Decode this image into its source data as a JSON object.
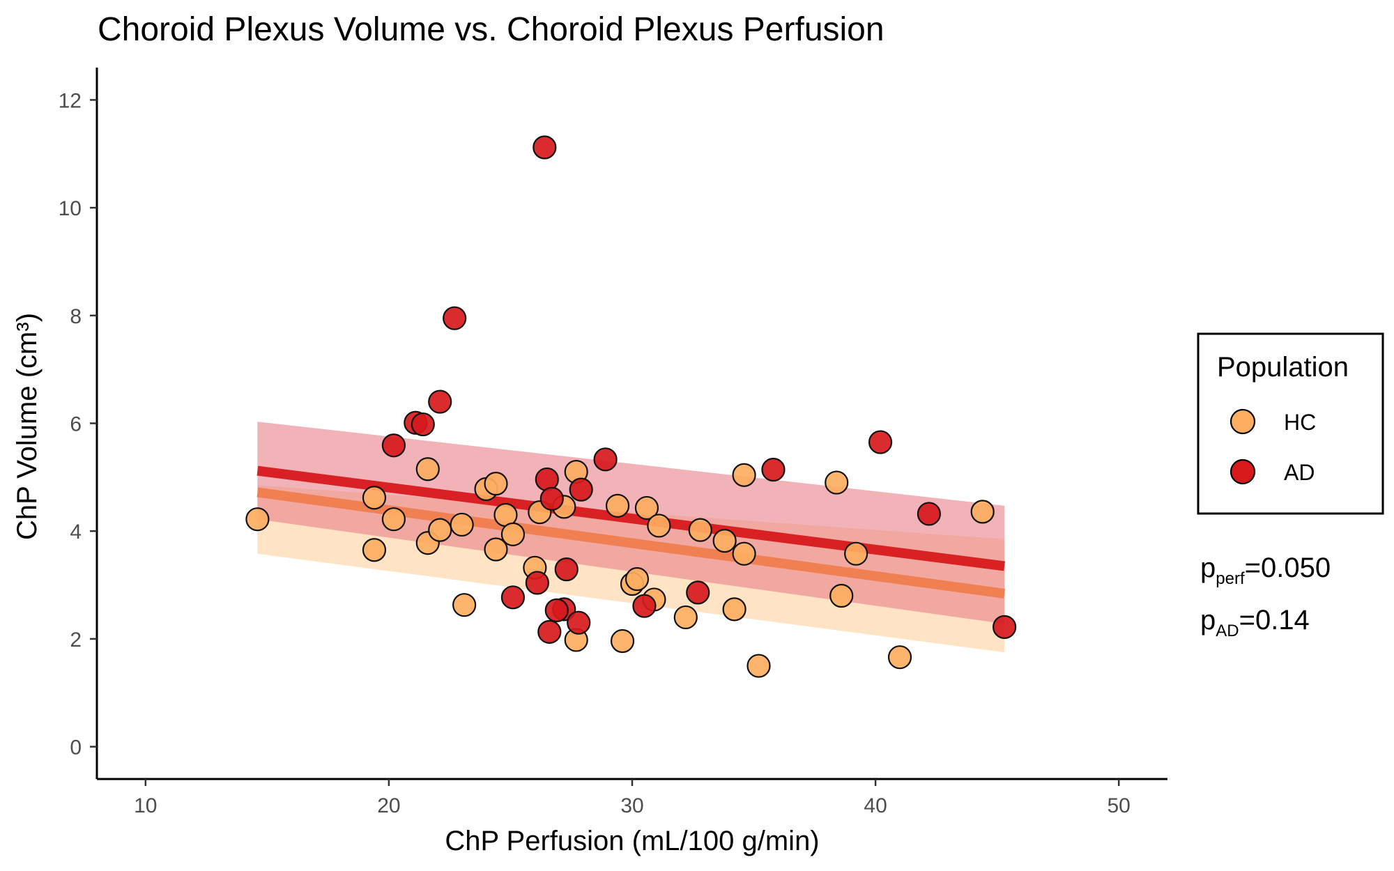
{
  "chart_data": {
    "type": "scatter",
    "title": "Choroid Plexus Volume vs. Choroid Plexus Perfusion",
    "xlabel": "ChP Perfusion (mL/100 g/min)",
    "ylabel": "ChP Volume (cm³)",
    "xlim": [
      8,
      52
    ],
    "ylim": [
      -0.6,
      12.6
    ],
    "xticks": [
      10,
      20,
      30,
      40,
      50
    ],
    "yticks": [
      0,
      2,
      4,
      6,
      8,
      10,
      12
    ],
    "legend": {
      "title": "Population",
      "position": "right",
      "entries": [
        "HC",
        "AD"
      ]
    },
    "colors": {
      "HC": "#fdae61",
      "AD": "#d7191c",
      "HC_line": "#f07b48",
      "HC_band": "#fdd9b0",
      "AD_band": "#e8848a"
    },
    "series": [
      {
        "name": "HC",
        "points": [
          [
            14.6,
            4.22
          ],
          [
            19.4,
            4.62
          ],
          [
            19.4,
            3.65
          ],
          [
            20.2,
            4.22
          ],
          [
            21.6,
            5.15
          ],
          [
            21.6,
            3.78
          ],
          [
            22.1,
            4.02
          ],
          [
            23.0,
            4.12
          ],
          [
            23.1,
            2.63
          ],
          [
            24.0,
            4.78
          ],
          [
            24.4,
            4.88
          ],
          [
            24.4,
            3.66
          ],
          [
            24.8,
            4.3
          ],
          [
            25.1,
            3.94
          ],
          [
            26.0,
            3.32
          ],
          [
            26.2,
            4.35
          ],
          [
            27.2,
            4.45
          ],
          [
            27.7,
            5.1
          ],
          [
            27.7,
            1.98
          ],
          [
            29.4,
            4.47
          ],
          [
            29.6,
            1.96
          ],
          [
            30.0,
            3.02
          ],
          [
            30.2,
            3.11
          ],
          [
            30.6,
            4.43
          ],
          [
            30.9,
            2.73
          ],
          [
            31.1,
            4.1
          ],
          [
            32.2,
            2.4
          ],
          [
            32.8,
            4.02
          ],
          [
            33.8,
            3.82
          ],
          [
            34.2,
            2.55
          ],
          [
            34.6,
            5.04
          ],
          [
            34.6,
            3.58
          ],
          [
            35.2,
            1.5
          ],
          [
            38.4,
            4.9
          ],
          [
            38.6,
            2.8
          ],
          [
            39.2,
            3.58
          ],
          [
            41.0,
            1.66
          ],
          [
            44.4,
            4.36
          ]
        ],
        "fit": {
          "x": [
            14.6,
            45.3
          ],
          "y": [
            4.72,
            2.84
          ]
        },
        "ci": {
          "x": [
            14.6,
            45.3
          ],
          "lower": [
            3.58,
            1.75
          ],
          "upper": [
            4.85,
            3.85
          ]
        }
      },
      {
        "name": "AD",
        "points": [
          [
            26.4,
            11.12
          ],
          [
            22.7,
            7.95
          ],
          [
            22.1,
            6.4
          ],
          [
            21.1,
            6.01
          ],
          [
            21.4,
            5.98
          ],
          [
            20.2,
            5.59
          ],
          [
            28.9,
            5.33
          ],
          [
            35.8,
            5.14
          ],
          [
            40.2,
            5.65
          ],
          [
            26.5,
            4.96
          ],
          [
            26.7,
            4.6
          ],
          [
            27.9,
            4.77
          ],
          [
            42.2,
            4.32
          ],
          [
            45.3,
            2.22
          ],
          [
            26.1,
            3.04
          ],
          [
            25.1,
            2.77
          ],
          [
            27.3,
            3.29
          ],
          [
            27.2,
            2.55
          ],
          [
            26.9,
            2.53
          ],
          [
            26.6,
            2.13
          ],
          [
            27.8,
            2.3
          ],
          [
            30.5,
            2.61
          ],
          [
            32.7,
            2.86
          ]
        ],
        "fit": {
          "x": [
            14.6,
            45.3
          ],
          "y": [
            5.12,
            3.35
          ]
        },
        "ci": {
          "x": [
            14.6,
            45.3
          ],
          "lower": [
            4.22,
            2.28
          ],
          "upper": [
            6.03,
            4.47
          ]
        }
      }
    ],
    "annotations": [
      {
        "base": "p",
        "sub": "perf",
        "value": "=0.050"
      },
      {
        "base": "p",
        "sub": "AD",
        "value": "=0.14"
      }
    ]
  }
}
